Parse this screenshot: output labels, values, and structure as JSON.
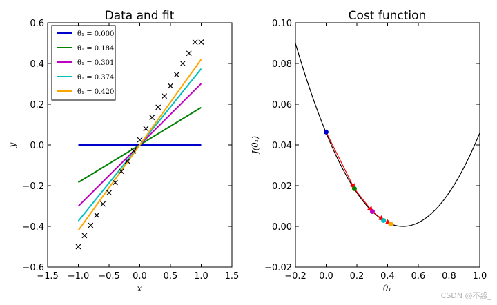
{
  "chart_data": [
    {
      "type": "line",
      "title": "Data and fit",
      "xlabel": "x",
      "ylabel": "y",
      "xlim": [
        -1.5,
        1.5
      ],
      "ylim": [
        -0.6,
        0.6
      ],
      "xticks": [
        -1.5,
        -1.0,
        -0.5,
        0.0,
        0.5,
        1.0,
        1.5
      ],
      "xtick_labels": [
        "−1.5",
        "−1.0",
        "−0.5",
        "0.0",
        "0.5",
        "1.0",
        "1.5"
      ],
      "yticks": [
        -0.6,
        -0.4,
        -0.2,
        0.0,
        0.2,
        0.4,
        0.6
      ],
      "ytick_labels": [
        "−0.6",
        "−0.4",
        "−0.2",
        "0.0",
        "0.2",
        "0.4",
        "0.6"
      ],
      "scatter": {
        "marker": "x",
        "color": "#000000",
        "x": [
          -1.0,
          -0.9,
          -0.8,
          -0.7,
          -0.6,
          -0.5,
          -0.4,
          -0.3,
          -0.2,
          -0.1,
          0.0,
          0.1,
          0.2,
          0.3,
          0.4,
          0.5,
          0.6,
          0.7,
          0.8,
          0.9,
          1.0
        ],
        "y": [
          -0.5,
          -0.445,
          -0.395,
          -0.345,
          -0.29,
          -0.235,
          -0.185,
          -0.13,
          -0.08,
          -0.03,
          0.025,
          0.08,
          0.135,
          0.185,
          0.24,
          0.29,
          0.345,
          0.4,
          0.45,
          0.505,
          0.505
        ]
      },
      "lines": [
        {
          "theta": 0.0,
          "label": "θ₁ = 0.000",
          "color": "#0000cc",
          "x": [
            -1.0,
            1.0
          ]
        },
        {
          "theta": 0.184,
          "label": "θ₁ = 0.184",
          "color": "#008000",
          "x": [
            -1.0,
            1.0
          ]
        },
        {
          "theta": 0.301,
          "label": "θ₁ = 0.301",
          "color": "#bf00bf",
          "x": [
            -1.0,
            1.0
          ]
        },
        {
          "theta": 0.374,
          "label": "θ₁ = 0.374",
          "color": "#00bfbf",
          "x": [
            -1.0,
            1.0
          ]
        },
        {
          "theta": 0.42,
          "label": "θ₁ = 0.420",
          "color": "#ffa500",
          "x": [
            -1.0,
            1.0
          ]
        }
      ],
      "legend_position": "upper-left"
    },
    {
      "type": "line",
      "title": "Cost function",
      "xlabel": "θ₁",
      "ylabel": "J(θ₁)",
      "xlim": [
        -0.2,
        1.0
      ],
      "ylim": [
        -0.02,
        0.1
      ],
      "xticks": [
        -0.2,
        0.0,
        0.2,
        0.4,
        0.6,
        0.8,
        1.0
      ],
      "xtick_labels": [
        "−0.2",
        "0.0",
        "0.2",
        "0.4",
        "0.6",
        "0.8",
        "1.0"
      ],
      "yticks": [
        -0.02,
        0.0,
        0.02,
        0.04,
        0.06,
        0.08,
        0.1
      ],
      "ytick_labels": [
        "−0.02",
        "0.00",
        "0.02",
        "0.04",
        "0.06",
        "0.08",
        "0.10"
      ],
      "curve": {
        "form": "a*(theta - b)^2",
        "a": 0.1835,
        "b": 0.5,
        "color": "#000000"
      },
      "points": [
        {
          "theta": 0.0,
          "J": 0.0463,
          "color": "#0000cc"
        },
        {
          "theta": 0.184,
          "J": 0.0185,
          "color": "#008000"
        },
        {
          "theta": 0.301,
          "J": 0.0073,
          "color": "#bf00bf"
        },
        {
          "theta": 0.374,
          "J": 0.0029,
          "color": "#00bfbf"
        },
        {
          "theta": 0.42,
          "J": 0.0012,
          "color": "#ffa500"
        }
      ],
      "arrow_color": "#ff0000"
    }
  ],
  "watermark": "CSDN @不惑_"
}
